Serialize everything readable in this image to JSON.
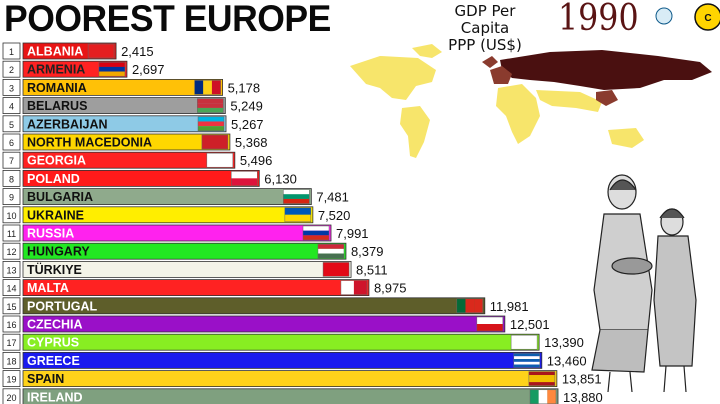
{
  "header": {
    "title": "POOREST EUROPE",
    "subtitle_line1": "GDP Per Capita",
    "subtitle_line2": "PPP (US$)",
    "year": "1990"
  },
  "chart_data": {
    "type": "bar",
    "orientation": "horizontal",
    "title": "POOREST EUROPE",
    "subtitle": "GDP Per Capita PPP (US$)",
    "year": "1990",
    "ranks": [
      "1",
      "2",
      "3",
      "4",
      "5",
      "6",
      "7",
      "8",
      "9",
      "10",
      "11",
      "12",
      "13",
      "14",
      "15",
      "16",
      "17",
      "18",
      "19",
      "20"
    ],
    "categories": [
      "ALBANIA",
      "ARMENIA",
      "ROMANIA",
      "BELARUS",
      "AZERBAIJAN",
      "NORTH MACEDONIA",
      "GEORGIA",
      "POLAND",
      "BULGARIA",
      "UKRAINE",
      "RUSSIA",
      "HUNGARY",
      "TÜRKIYE",
      "MALTA",
      "PORTUGAL",
      "CZECHIA",
      "CYPRUS",
      "GREECE",
      "SPAIN",
      "IRELAND"
    ],
    "values": [
      2415,
      2697,
      5178,
      5249,
      5267,
      5368,
      5496,
      6130,
      7481,
      7520,
      7991,
      8379,
      8511,
      8975,
      11981,
      12501,
      13390,
      13460,
      13851,
      13880
    ],
    "value_labels": [
      "2,415",
      "2,697",
      "5,178",
      "5,249",
      "5,267",
      "5,368",
      "5,496",
      "6,130",
      "7,481",
      "7,520",
      "7,991",
      "8,379",
      "8,511",
      "8,975",
      "11,981",
      "12,501",
      "13,390",
      "13,460",
      "13,851",
      "13,880"
    ],
    "bar_colors": [
      "#e81515",
      "#ff2222",
      "#ffc107",
      "#9e9e9e",
      "#8ecae6",
      "#ffd700",
      "#ff2222",
      "#ff1a1a",
      "#8faa8c",
      "#ffee00",
      "#ff22ee",
      "#22e822",
      "#f4f4e8",
      "#ff2222",
      "#5e5e2a",
      "#9a10c8",
      "#88ee22",
      "#1a1aee",
      "#ffd21a",
      "#7fa07f"
    ],
    "label_colors": [
      "#ffffff",
      "#222222",
      "#111111",
      "#111111",
      "#111111",
      "#111111",
      "#ffffff",
      "#ffffff",
      "#111111",
      "#111111",
      "#ffffff",
      "#111111",
      "#111111",
      "#ffffff",
      "#ffffff",
      "#ffffff",
      "#ffffff",
      "#ffffff",
      "#111111",
      "#ffffff"
    ],
    "flags": [
      "albania-flag",
      "armenia-flag",
      "romania-flag",
      "belarus-flag",
      "azerbaijan-flag",
      "north-macedonia-flag",
      "georgia-flag",
      "poland-flag",
      "bulgaria-flag",
      "ukraine-flag",
      "russia-flag",
      "hungary-flag",
      "turkiye-flag",
      "malta-flag",
      "portugal-flag",
      "czechia-flag",
      "cyprus-flag",
      "greece-flag",
      "spain-flag",
      "ireland-flag"
    ],
    "legend": "none",
    "grid": false
  }
}
